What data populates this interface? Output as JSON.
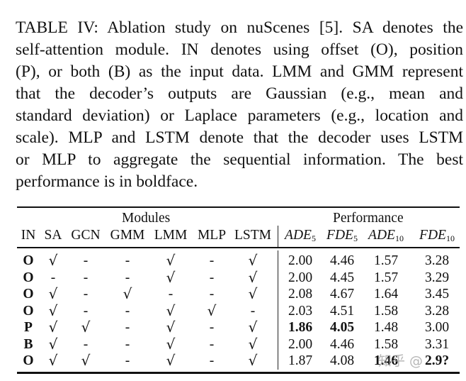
{
  "caption": {
    "lines": [
      "TABLE IV: Ablation study on nuScenes [5]. SA denotes the",
      "self-attention module. IN denotes using offset (O), position",
      "(P), or both (B) as the input data. LMM and GMM represent",
      "that the decoder’s outputs are Gaussian (e.g., mean and",
      "standard deviation) or Laplace parameters (e.g., location and",
      "scale). MLP and LSTM denote that the decoder uses LSTM",
      "or MLP to aggregate the sequential information. The best",
      "performance is in boldface."
    ]
  },
  "table": {
    "groups": {
      "modules": "Modules",
      "performance": "Performance"
    },
    "columns": {
      "IN": "IN",
      "SA": "SA",
      "GCN": "GCN",
      "GMM": "GMM",
      "LMM": "LMM",
      "MLP": "MLP",
      "LSTM": "LSTM",
      "ADE5": {
        "base": "ADE",
        "sub": "5"
      },
      "FDE5": {
        "base": "FDE",
        "sub": "5"
      },
      "ADE10": {
        "base": "ADE",
        "sub": "10"
      },
      "FDE10": {
        "base": "FDE",
        "sub": "10"
      }
    },
    "rows": [
      {
        "IN": "O",
        "SA": "√",
        "GCN": "-",
        "GMM": "-",
        "LMM": "√",
        "MLP": "-",
        "LSTM": "√",
        "ADE5": "2.00",
        "FDE5": "4.46",
        "ADE10": "1.57",
        "FDE10": "3.28"
      },
      {
        "IN": "O",
        "SA": "-",
        "GCN": "-",
        "GMM": "-",
        "LMM": "√",
        "MLP": "-",
        "LSTM": "√",
        "ADE5": "2.00",
        "FDE5": "4.45",
        "ADE10": "1.57",
        "FDE10": "3.29"
      },
      {
        "IN": "O",
        "SA": "√",
        "GCN": "-",
        "GMM": "√",
        "LMM": "-",
        "MLP": "-",
        "LSTM": "√",
        "ADE5": "2.08",
        "FDE5": "4.67",
        "ADE10": "1.64",
        "FDE10": "3.45"
      },
      {
        "IN": "O",
        "SA": "√",
        "GCN": "-",
        "GMM": "-",
        "LMM": "√",
        "MLP": "√",
        "LSTM": "-",
        "ADE5": "2.03",
        "FDE5": "4.51",
        "ADE10": "1.58",
        "FDE10": "3.28"
      },
      {
        "IN": "P",
        "SA": "√",
        "GCN": "√",
        "GMM": "-",
        "LMM": "√",
        "MLP": "-",
        "LSTM": "√",
        "ADE5": "1.86",
        "FDE5": "4.05",
        "ADE10": "1.48",
        "FDE10": "3.00"
      },
      {
        "IN": "B",
        "SA": "√",
        "GCN": "-",
        "GMM": "-",
        "LMM": "√",
        "MLP": "-",
        "LSTM": "√",
        "ADE5": "2.00",
        "FDE5": "4.46",
        "ADE10": "1.58",
        "FDE10": "3.31"
      },
      {
        "IN": "O",
        "SA": "√",
        "GCN": "√",
        "GMM": "-",
        "LMM": "√",
        "MLP": "-",
        "LSTM": "√",
        "ADE5": "1.87",
        "FDE5": "4.08",
        "ADE10": "1.46",
        "FDE10": "2.9?"
      }
    ],
    "bold_cells": [
      [
        4,
        "ADE5"
      ],
      [
        4,
        "FDE5"
      ],
      [
        6,
        "ADE10"
      ],
      [
        6,
        "FDE10"
      ]
    ]
  },
  "watermark": "知乎 @"
}
